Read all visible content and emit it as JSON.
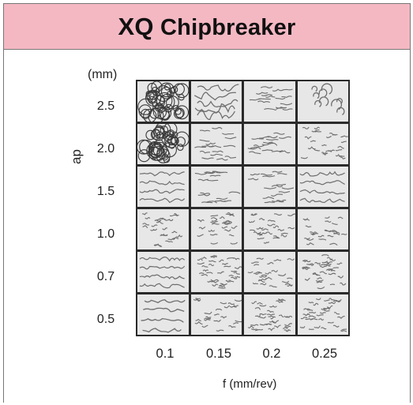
{
  "header": {
    "title_bold": "XQ",
    "title_rest": "Chipbreaker"
  },
  "chart": {
    "unit": "(mm)",
    "y_axis_label": "ap",
    "x_axis_label": "f (mm/rev)",
    "rows": [
      "2.5",
      "2.0",
      "1.5",
      "1.0",
      "0.7",
      "0.5"
    ],
    "columns": [
      "0.1",
      "0.15",
      "0.2",
      "0.25"
    ],
    "cells": [
      [
        "tangled",
        "long",
        "medium",
        "curl"
      ],
      [
        "tangled",
        "medium",
        "medium",
        "short"
      ],
      [
        "wavy",
        "medium",
        "medium",
        "wavy"
      ],
      [
        "short",
        "short",
        "short",
        "short"
      ],
      [
        "wavy",
        "dense",
        "short",
        "dense"
      ],
      [
        "long-wavy",
        "short",
        "dense",
        "dense"
      ]
    ]
  },
  "colors": {
    "header_bg": "#f4b8c3",
    "cell_bg": "#e7e7e7",
    "grid_line": "#2a2a2a",
    "chip": "#6e6e6e"
  }
}
